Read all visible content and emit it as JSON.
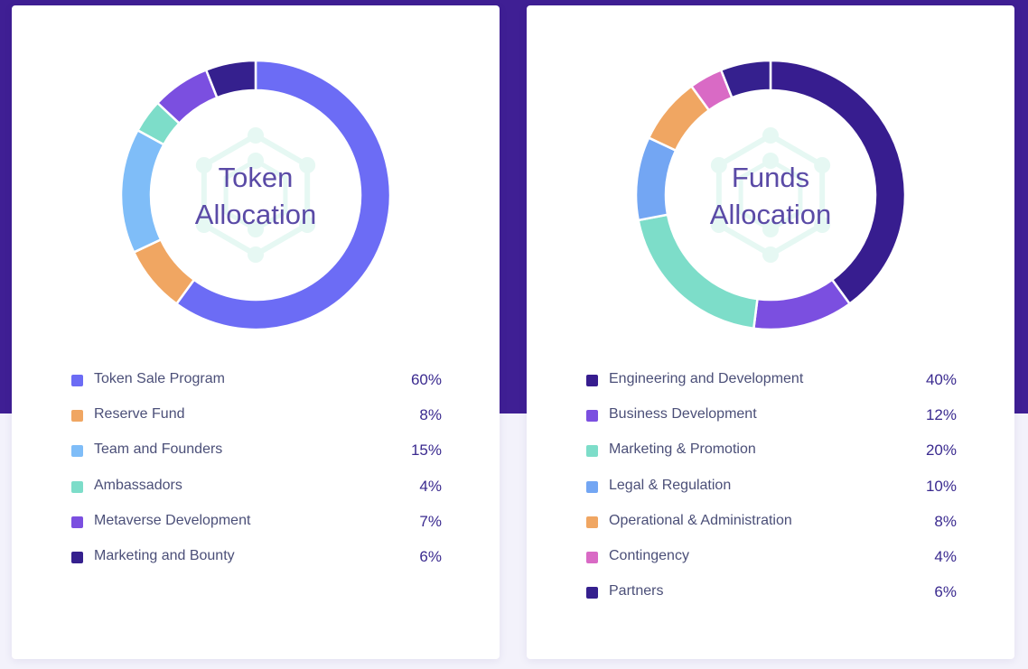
{
  "chart_data": [
    {
      "type": "pie",
      "title": "Token Allocation",
      "slices": [
        {
          "label": "Token Sale Program",
          "value": 60,
          "display": "60%",
          "color": "#6c6cf5"
        },
        {
          "label": "Reserve Fund",
          "value": 8,
          "display": "8%",
          "color": "#f0a662"
        },
        {
          "label": "Team and Founders",
          "value": 15,
          "display": "15%",
          "color": "#7fbdf8"
        },
        {
          "label": "Ambassadors",
          "value": 4,
          "display": "4%",
          "color": "#7dddc9"
        },
        {
          "label": "Metaverse Development",
          "value": 7,
          "display": "7%",
          "color": "#7b4fe0"
        },
        {
          "label": "Marketing and Bounty",
          "value": 6,
          "display": "6%",
          "color": "#35208e"
        }
      ]
    },
    {
      "type": "pie",
      "title": "Funds Allocation",
      "slices": [
        {
          "label": "Engineering and Development",
          "value": 40,
          "display": "40%",
          "color": "#371d8f"
        },
        {
          "label": "Business Development",
          "value": 12,
          "display": "12%",
          "color": "#7b4fe0"
        },
        {
          "label": "Marketing & Promotion",
          "value": 20,
          "display": "20%",
          "color": "#7dddc9"
        },
        {
          "label": "Legal & Regulation",
          "value": 10,
          "display": "10%",
          "color": "#73a6f3"
        },
        {
          "label": "Operational & Administration",
          "value": 8,
          "display": "8%",
          "color": "#f0a662"
        },
        {
          "label": "Contingency",
          "value": 4,
          "display": "4%",
          "color": "#d96ac5"
        },
        {
          "label": "Partners",
          "value": 6,
          "display": "6%",
          "color": "#35208e"
        }
      ]
    }
  ],
  "cards": [
    {
      "title_line1": "Token",
      "title_line2": "Allocation"
    },
    {
      "title_line1": "Funds",
      "title_line2": "Allocation"
    }
  ],
  "theme": {
    "band": "#3f1f94",
    "title_text": "#5a4aa6",
    "watermark": "#e6f8f3"
  },
  "icons": {
    "watermark": "hexagon-network-icon"
  }
}
